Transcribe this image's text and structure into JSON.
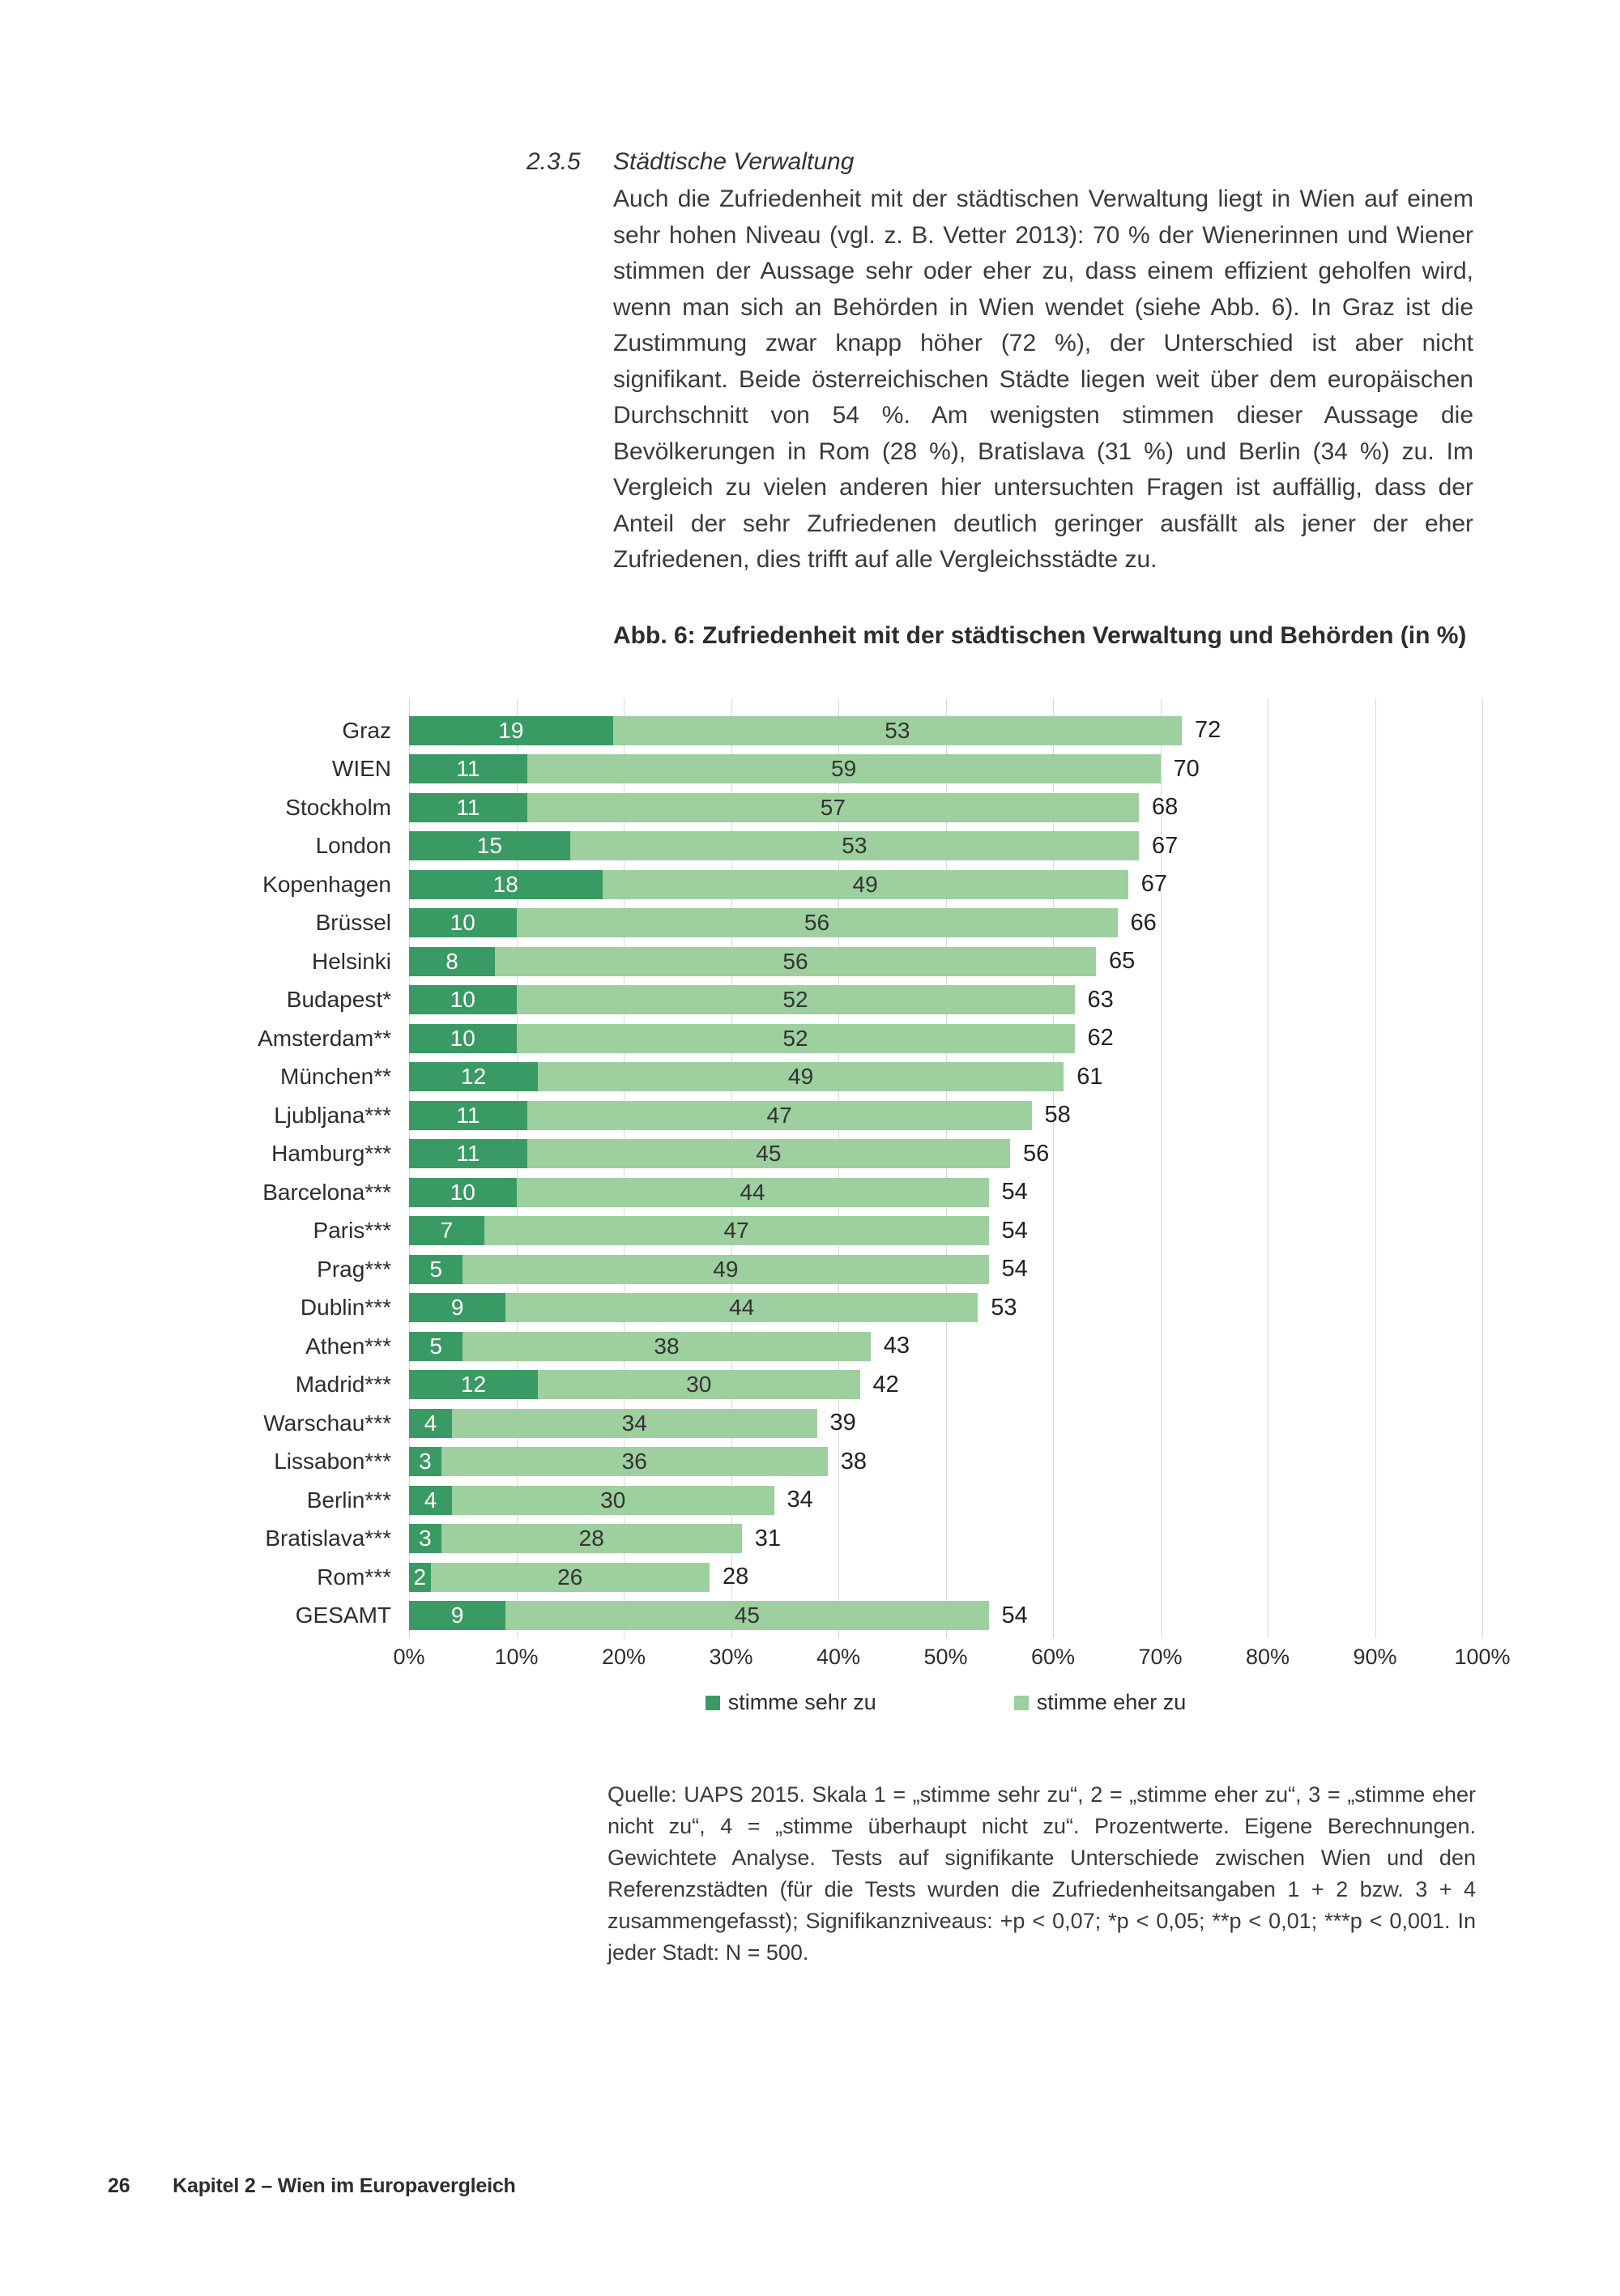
{
  "page": {
    "section_number": "2.3.5",
    "section_title": "Städtische Verwaltung",
    "body_text": "Auch die Zufriedenheit mit der städtischen Verwaltung liegt in Wien auf einem sehr hohen Niveau (vgl. z. B. Vetter 2013): 70 % der Wienerinnen und Wiener stimmen der Aussage sehr oder eher zu, dass einem effizient geholfen wird, wenn man sich an Behörden in Wien wendet (siehe Abb. 6). In Graz ist die Zustimmung zwar knapp höher (72 %), der Unterschied ist aber nicht signifikant. Beide österreichischen Städte liegen weit über dem europäischen Durchschnitt von 54 %. Am wenigsten stimmen dieser Aussage die Bevölkerungen in Rom (28 %), Bratislava (31 %) und Berlin (34 %) zu. Im Vergleich zu vielen anderen hier untersuchten Fragen ist auffällig, dass der Anteil der sehr Zufriedenen deutlich geringer ausfällt als jener der eher Zufriedenen, dies trifft auf alle Vergleichsstädte zu.",
    "footer": {
      "page_number": "26",
      "chapter": "Kapitel 2 – Wien im Europavergleich"
    }
  },
  "chart_data": {
    "type": "bar",
    "orientation": "horizontal",
    "stacked": true,
    "title": "Abb. 6: Zufriedenheit mit der städtischen Verwaltung und Behörden (in %)",
    "categories": [
      "Graz",
      "WIEN",
      "Stockholm",
      "London",
      "Kopenhagen",
      "Brüssel",
      "Helsinki",
      "Budapest*",
      "Amsterdam**",
      "München**",
      "Ljubljana***",
      "Hamburg***",
      "Barcelona***",
      "Paris***",
      "Prag***",
      "Dublin***",
      "Athen***",
      "Madrid***",
      "Warschau***",
      "Lissabon***",
      "Berlin***",
      "Bratislava***",
      "Rom***",
      "GESAMT"
    ],
    "series": [
      {
        "name": "stimme sehr zu",
        "color": "#3a9a63",
        "values": [
          19,
          11,
          11,
          15,
          18,
          10,
          8,
          10,
          10,
          12,
          11,
          11,
          10,
          7,
          5,
          9,
          5,
          12,
          4,
          3,
          4,
          3,
          2,
          9
        ]
      },
      {
        "name": "stimme eher zu",
        "color": "#9dcf9f",
        "values": [
          53,
          59,
          57,
          53,
          49,
          56,
          56,
          52,
          52,
          49,
          47,
          45,
          44,
          47,
          49,
          44,
          38,
          30,
          34,
          36,
          30,
          28,
          26,
          45
        ]
      }
    ],
    "totals": [
      72,
      70,
      68,
      67,
      67,
      66,
      65,
      63,
      62,
      61,
      58,
      56,
      54,
      54,
      54,
      53,
      43,
      42,
      39,
      38,
      34,
      31,
      28,
      54
    ],
    "xlim": [
      0,
      100
    ],
    "x_ticks": [
      "0%",
      "10%",
      "20%",
      "30%",
      "40%",
      "50%",
      "60%",
      "70%",
      "80%",
      "90%",
      "100%"
    ],
    "grid": true,
    "gridline_color": "#d9d9d9",
    "legend_position": "bottom",
    "source_note": "Quelle: UAPS 2015. Skala 1 = „stimme sehr zu“, 2 = „stimme eher zu“, 3 = „stimme eher nicht zu“, 4 = „stimme überhaupt nicht zu“. Prozentwerte. Eigene Berechnungen. Gewichtete Analyse. Tests auf signifikante Unterschiede zwischen Wien und den Referenzstädten (für die Tests wurden die Zufriedenheitsangaben 1 + 2 bzw. 3 + 4 zusammengefasst); Signifikanzniveaus: +p < 0,07; *p < 0,05; **p < 0,01; ***p < 0,001. In jeder Stadt: N = 500."
  }
}
